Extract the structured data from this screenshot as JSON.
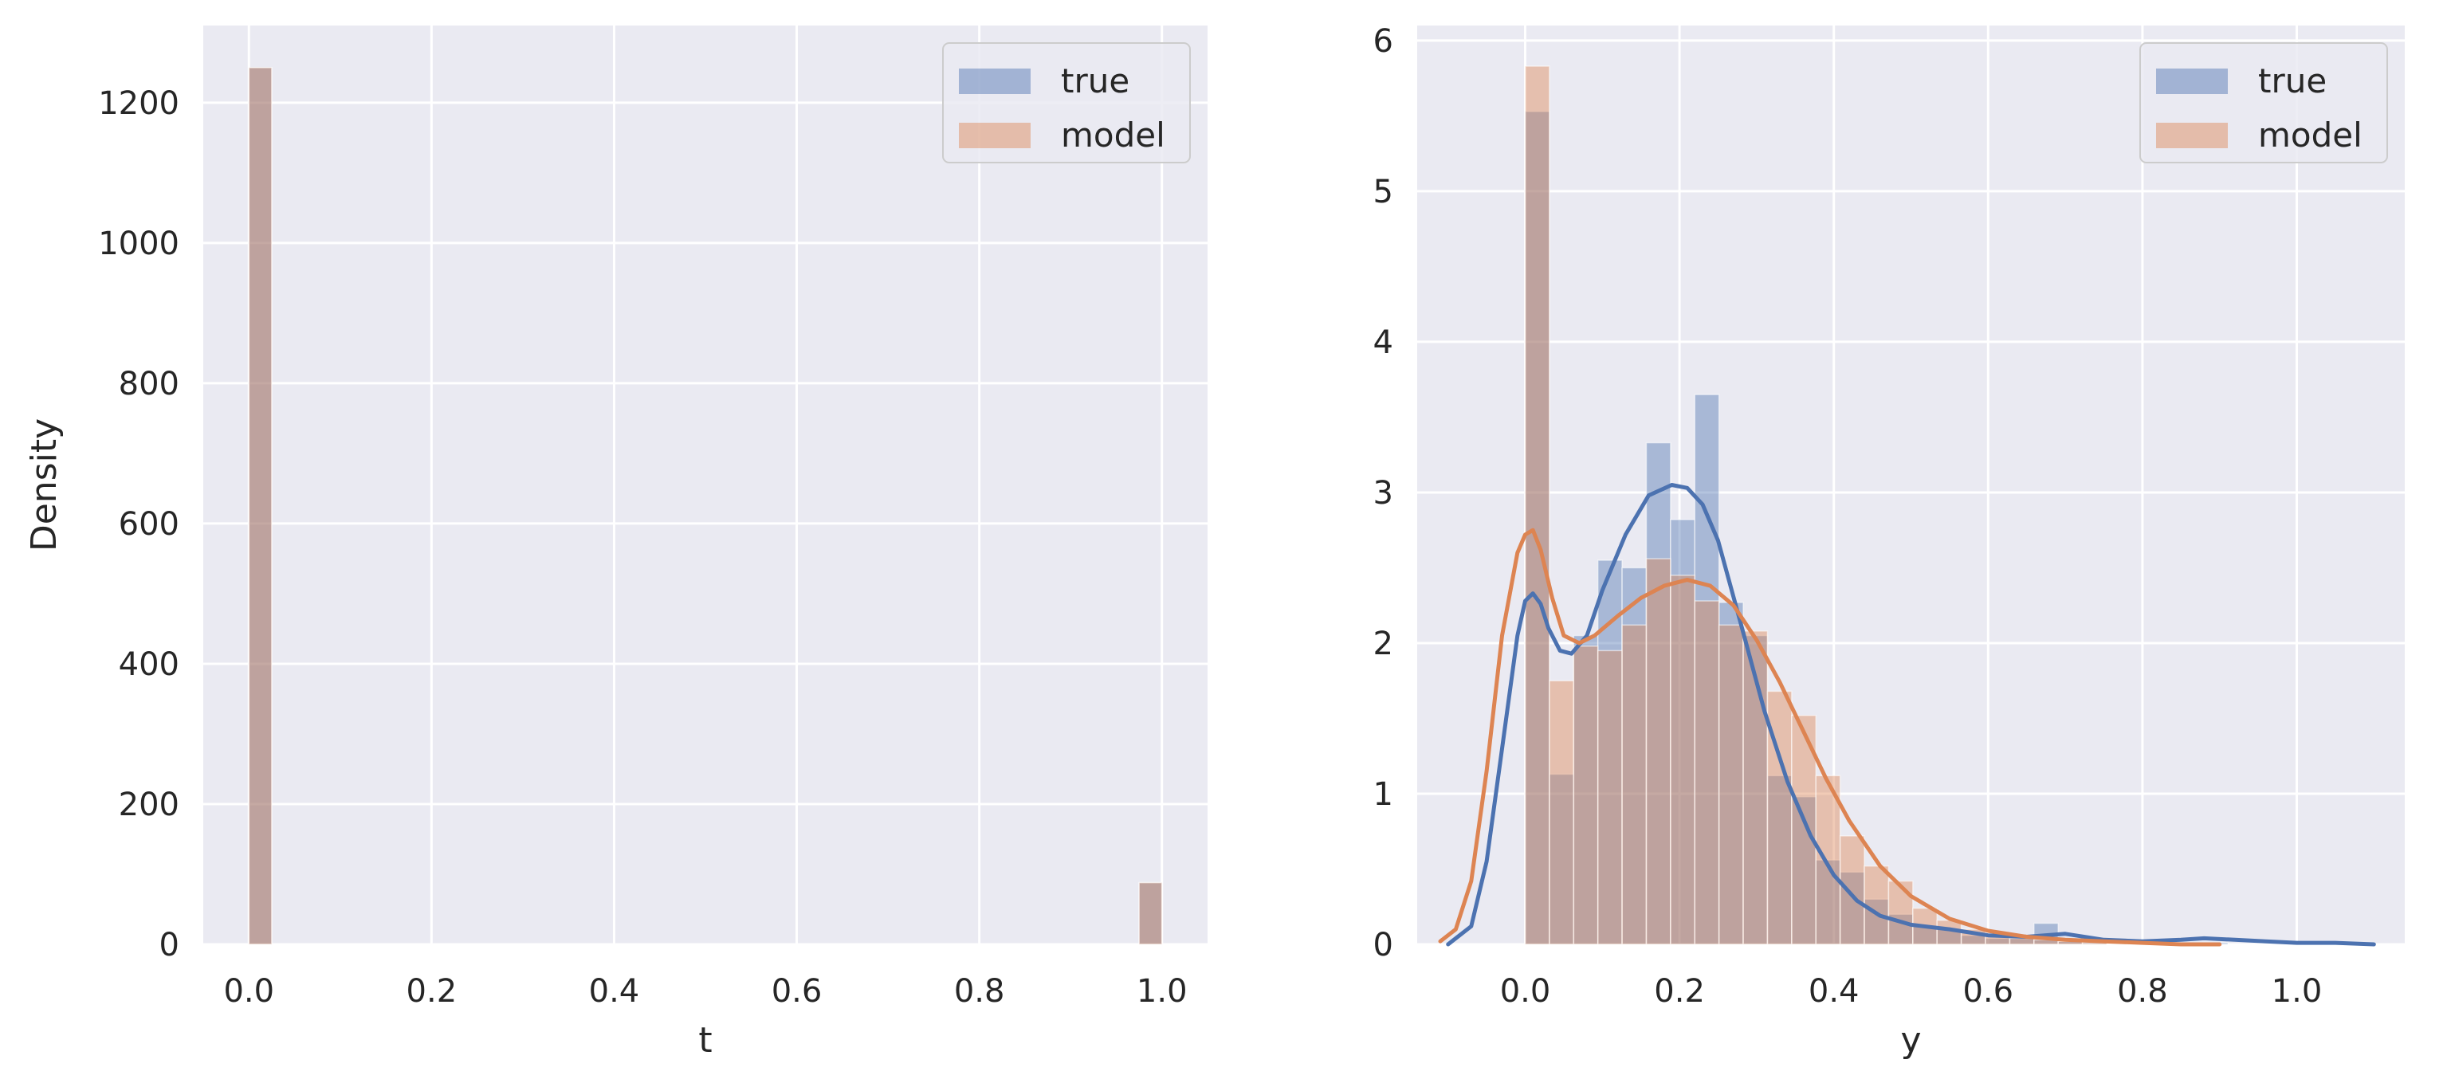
{
  "chart_data": [
    {
      "type": "bar",
      "subtype": "histogram",
      "xlabel": "t",
      "ylabel": "Density",
      "xlim": [
        -0.05,
        1.05
      ],
      "ylim": [
        0,
        1310
      ],
      "xticks": [
        0.0,
        0.2,
        0.4,
        0.6,
        0.8,
        1.0
      ],
      "xtick_labels": [
        "0.0",
        "0.2",
        "0.4",
        "0.6",
        "0.8",
        "1.0"
      ],
      "yticks": [
        0,
        200,
        400,
        600,
        800,
        1000,
        1200
      ],
      "ytick_labels": [
        "0",
        "200",
        "400",
        "600",
        "800",
        "1000",
        "1200"
      ],
      "grid": true,
      "background": "#eaeaf2",
      "legend": {
        "position": "top-right",
        "entries": [
          "true",
          "model"
        ]
      },
      "bin_width": 0.025,
      "series": [
        {
          "name": "true",
          "color": "#4c72b0",
          "bins": [
            {
              "x0": 0.0,
              "x1": 0.025,
              "value": 1250
            },
            {
              "x0": 0.975,
              "x1": 1.0,
              "value": 88
            }
          ]
        },
        {
          "name": "model",
          "color": "#dd8452",
          "bins": [
            {
              "x0": 0.0,
              "x1": 0.025,
              "value": 1250
            },
            {
              "x0": 0.975,
              "x1": 1.0,
              "value": 88
            }
          ]
        }
      ]
    },
    {
      "type": "bar",
      "subtype": "histogram with KDE",
      "xlabel": "y",
      "ylabel": "",
      "xlim": [
        -0.14,
        1.14
      ],
      "ylim": [
        0,
        6.1
      ],
      "xticks": [
        0.0,
        0.2,
        0.4,
        0.6,
        0.8,
        1.0
      ],
      "xtick_labels": [
        "0.0",
        "0.2",
        "0.4",
        "0.6",
        "0.8",
        "1.0"
      ],
      "yticks": [
        0,
        1,
        2,
        3,
        4,
        5,
        6
      ],
      "ytick_labels": [
        "0",
        "1",
        "2",
        "3",
        "4",
        "5",
        "6"
      ],
      "grid": true,
      "background": "#eaeaf2",
      "legend": {
        "position": "top-right",
        "entries": [
          "true",
          "model"
        ]
      },
      "series": [
        {
          "name": "true",
          "color": "#4c72b0",
          "bin_start": 0.0,
          "bin_width": 0.0314,
          "values": [
            5.53,
            1.13,
            2.05,
            2.55,
            2.5,
            3.33,
            2.82,
            3.65,
            2.27,
            2.05,
            1.12,
            0.98,
            0.56,
            0.48,
            0.3,
            0.2,
            0.12,
            0.1,
            0.06,
            0.04,
            0.05,
            0.14,
            0.02,
            0.02,
            0.0,
            0.01,
            0.0,
            0.0,
            0.01,
            0.0,
            0.0,
            0.0,
            0.0,
            0.0,
            0.0
          ],
          "kde": {
            "x": [
              -0.1,
              -0.07,
              -0.05,
              -0.03,
              -0.01,
              0.0,
              0.01,
              0.02,
              0.03,
              0.045,
              0.06,
              0.08,
              0.1,
              0.13,
              0.16,
              0.19,
              0.21,
              0.23,
              0.25,
              0.28,
              0.31,
              0.34,
              0.37,
              0.4,
              0.43,
              0.46,
              0.5,
              0.55,
              0.6,
              0.65,
              0.7,
              0.75,
              0.8,
              0.85,
              0.88,
              0.92,
              0.96,
              1.0,
              1.05,
              1.1
            ],
            "y": [
              0.0,
              0.12,
              0.55,
              1.3,
              2.05,
              2.28,
              2.33,
              2.26,
              2.1,
              1.95,
              1.93,
              2.05,
              2.35,
              2.72,
              2.98,
              3.05,
              3.03,
              2.92,
              2.68,
              2.12,
              1.55,
              1.08,
              0.72,
              0.46,
              0.29,
              0.19,
              0.13,
              0.1,
              0.06,
              0.05,
              0.07,
              0.03,
              0.02,
              0.03,
              0.04,
              0.03,
              0.02,
              0.01,
              0.01,
              0.0
            ]
          }
        },
        {
          "name": "model",
          "color": "#dd8452",
          "bin_start": 0.0,
          "bin_width": 0.0314,
          "values": [
            5.83,
            1.75,
            1.98,
            1.95,
            2.12,
            2.56,
            2.45,
            2.28,
            2.12,
            2.08,
            1.68,
            1.52,
            1.12,
            0.72,
            0.52,
            0.42,
            0.24,
            0.16,
            0.1,
            0.06,
            0.04,
            0.03,
            0.02,
            0.01,
            0.0,
            0.0,
            0.0,
            0.0,
            0.0,
            0.0,
            0.0,
            0.0,
            0.0,
            0.0,
            0.0
          ],
          "kde": {
            "x": [
              -0.11,
              -0.09,
              -0.07,
              -0.05,
              -0.03,
              -0.01,
              0.0,
              0.01,
              0.02,
              0.035,
              0.05,
              0.07,
              0.09,
              0.12,
              0.15,
              0.18,
              0.21,
              0.24,
              0.27,
              0.3,
              0.33,
              0.36,
              0.39,
              0.42,
              0.46,
              0.5,
              0.55,
              0.6,
              0.65,
              0.7,
              0.75,
              0.8,
              0.85,
              0.9
            ],
            "y": [
              0.02,
              0.1,
              0.42,
              1.15,
              2.05,
              2.6,
              2.72,
              2.75,
              2.62,
              2.3,
              2.05,
              2.0,
              2.05,
              2.18,
              2.3,
              2.38,
              2.42,
              2.38,
              2.25,
              2.02,
              1.74,
              1.42,
              1.1,
              0.82,
              0.52,
              0.32,
              0.17,
              0.09,
              0.05,
              0.03,
              0.02,
              0.01,
              0.0,
              0.0
            ]
          }
        }
      ]
    }
  ]
}
